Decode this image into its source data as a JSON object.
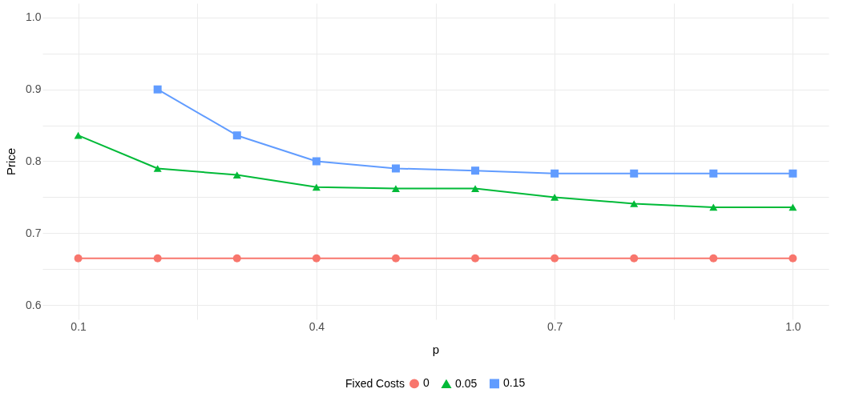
{
  "chart_data": {
    "type": "line",
    "xlabel": "p",
    "ylabel": "Price",
    "legend_title": "Fixed Costs",
    "legend": "bottom",
    "grid": true,
    "x": [
      0.1,
      0.2,
      0.3,
      0.4,
      0.5,
      0.6,
      0.7,
      0.8,
      0.9,
      1.0
    ],
    "xlim": [
      0.055,
      1.045
    ],
    "xticks": [
      0.1,
      {
        "value": 0.25,
        "label": null
      },
      0.4,
      {
        "value": 0.55,
        "label": null
      },
      0.7,
      {
        "value": 0.85,
        "label": null
      },
      {
        "value": 1.0,
        "label": "1.0"
      }
    ],
    "ylim": [
      0.58,
      1.02
    ],
    "yticks": [
      0.6,
      {
        "value": 0.65,
        "label": null
      },
      0.7,
      {
        "value": 0.75,
        "label": null
      },
      0.8,
      {
        "value": 0.85,
        "label": null
      },
      0.9,
      {
        "value": 0.95,
        "label": null
      },
      {
        "value": 1.0,
        "label": "1.0"
      }
    ],
    "line_style": "solid",
    "series": [
      {
        "name": "0",
        "color": "#f8766d",
        "marker": "circle",
        "values": [
          0.665,
          0.665,
          0.665,
          0.665,
          0.665,
          0.665,
          0.665,
          0.665,
          0.665,
          0.665
        ]
      },
      {
        "name": "0.05",
        "color": "#00ba38",
        "marker": "triangle",
        "values": [
          0.836,
          0.79,
          0.781,
          0.764,
          0.762,
          0.762,
          0.75,
          0.741,
          0.736,
          0.736
        ]
      },
      {
        "name": "0.15",
        "color": "#619cff",
        "marker": "square",
        "values": [
          null,
          0.9,
          0.836,
          0.8,
          0.79,
          0.787,
          0.783,
          0.783,
          0.783,
          0.783
        ]
      }
    ]
  }
}
